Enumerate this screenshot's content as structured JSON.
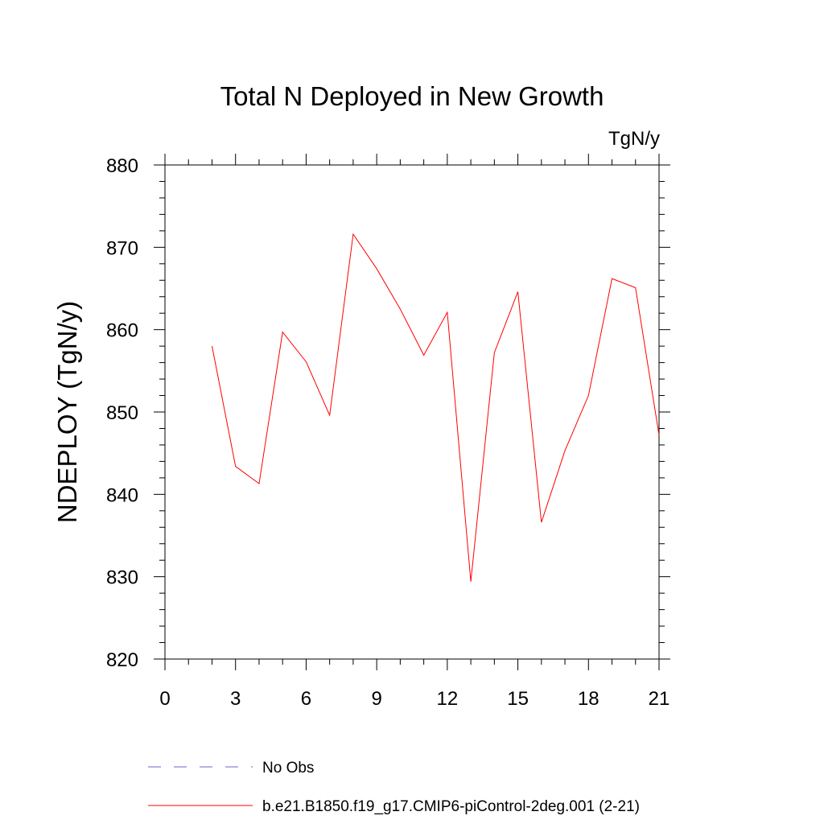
{
  "chart_data": {
    "type": "line",
    "title": "Total N Deployed in New Growth",
    "units_label": "TgN/y",
    "xlabel": "",
    "ylabel": "NDEPLOY  (TgN/y)",
    "xlim": [
      0,
      21
    ],
    "ylim": [
      820,
      880
    ],
    "x_ticks": [
      0,
      3,
      6,
      9,
      12,
      15,
      18,
      21
    ],
    "y_ticks": [
      820,
      830,
      840,
      850,
      860,
      870,
      880
    ],
    "grid": false,
    "legend_position": "bottom-left",
    "series": [
      {
        "name": "No Obs",
        "style": "dashed",
        "color": "#6666cc",
        "x": [],
        "values": []
      },
      {
        "name": "b.e21.B1850.f19_g17.CMIP6-piControl-2deg.001 (2-21)",
        "style": "solid",
        "color": "#ff0000",
        "x": [
          2,
          3,
          4,
          5,
          6,
          7,
          8,
          9,
          10,
          11,
          12,
          13,
          14,
          15,
          16,
          17,
          18,
          19,
          20,
          21
        ],
        "values": [
          858.0,
          843.4,
          841.3,
          859.7,
          856.1,
          849.6,
          871.6,
          867.4,
          862.5,
          856.9,
          862.1,
          829.4,
          857.2,
          864.6,
          836.6,
          845.3,
          852.0,
          866.2,
          865.1,
          847.2
        ]
      }
    ]
  }
}
